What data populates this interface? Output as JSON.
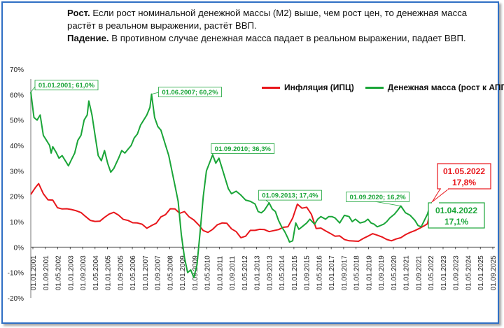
{
  "caption": {
    "rise_label": "Рост.",
    "rise_text": " Если рост номинальной денежной массы (М2) выше, чем рост цен,  то денежная масса растёт в реальном выражении, растёт ВВП.",
    "fall_label": "Падение.",
    "fall_text": " В противном случае денежная масса падает в реальном выражении, падает ВВП."
  },
  "colors": {
    "inflation": "#e8161b",
    "money": "#1aa538",
    "frame": "#2f6fc4"
  },
  "chart_data": {
    "type": "line",
    "title": "",
    "xlabel": "",
    "ylabel": "",
    "ylim": [
      -20,
      70
    ],
    "yticks": [
      -20,
      -10,
      0,
      10,
      20,
      30,
      40,
      50,
      60,
      70
    ],
    "ytick_labels": [
      "-20%",
      "-10%",
      "0%",
      "10%",
      "20%",
      "30%",
      "40%",
      "50%",
      "60%",
      "70%"
    ],
    "x_start": "2001-01",
    "x_end": "2025-09",
    "xtick_labels": [
      "01.01.2001",
      "01.09.2001",
      "01.05.2002",
      "01.01.2003",
      "01.09.2003",
      "01.05.2004",
      "01.01.2005",
      "01.09.2005",
      "01.05.2006",
      "01.01.2007",
      "01.09.2007",
      "01.05.2008",
      "01.01.2009",
      "01.09.2009",
      "01.05.2010",
      "01.01.2011",
      "01.09.2011",
      "01.05.2012",
      "01.01.2013",
      "01.09.2013",
      "01.05.2014",
      "01.01.2015",
      "01.09.2015",
      "01.05.2016",
      "01.01.2017",
      "01.09.2017",
      "01.05.2018",
      "01.01.2019",
      "01.09.2019",
      "01.05.2020",
      "01.01.2021",
      "01.09.2021",
      "01.05.2022",
      "01.01.2023",
      "01.09.2023",
      "01.05.2024",
      "01.01.2025",
      "01.09.2025"
    ],
    "legend": {
      "placement": "top-right"
    },
    "grid": false,
    "series": [
      {
        "name": "Инфляция (ИПЦ)",
        "points": [
          [
            "2001-01",
            20.7
          ],
          [
            "2001-04",
            23.5
          ],
          [
            "2001-06",
            25.0
          ],
          [
            "2001-09",
            21.0
          ],
          [
            "2001-12",
            18.6
          ],
          [
            "2002-03",
            18.5
          ],
          [
            "2002-06",
            15.5
          ],
          [
            "2002-09",
            15.0
          ],
          [
            "2002-12",
            15.1
          ],
          [
            "2003-03",
            14.8
          ],
          [
            "2003-06",
            14.3
          ],
          [
            "2003-09",
            13.6
          ],
          [
            "2003-12",
            12.0
          ],
          [
            "2004-03",
            10.5
          ],
          [
            "2004-06",
            10.1
          ],
          [
            "2004-09",
            10.2
          ],
          [
            "2004-12",
            11.7
          ],
          [
            "2005-03",
            13.0
          ],
          [
            "2005-06",
            13.7
          ],
          [
            "2005-09",
            12.6
          ],
          [
            "2005-12",
            10.9
          ],
          [
            "2006-03",
            10.5
          ],
          [
            "2006-06",
            9.6
          ],
          [
            "2006-09",
            9.5
          ],
          [
            "2006-12",
            9.0
          ],
          [
            "2007-03",
            7.4
          ],
          [
            "2007-06",
            8.5
          ],
          [
            "2007-09",
            9.4
          ],
          [
            "2007-12",
            11.9
          ],
          [
            "2008-03",
            12.8
          ],
          [
            "2008-06",
            15.1
          ],
          [
            "2008-09",
            15.0
          ],
          [
            "2008-12",
            13.3
          ],
          [
            "2009-03",
            14.0
          ],
          [
            "2009-06",
            11.9
          ],
          [
            "2009-09",
            10.7
          ],
          [
            "2009-12",
            8.8
          ],
          [
            "2010-03",
            6.5
          ],
          [
            "2010-06",
            5.8
          ],
          [
            "2010-09",
            7.0
          ],
          [
            "2010-12",
            8.8
          ],
          [
            "2011-03",
            9.5
          ],
          [
            "2011-06",
            9.4
          ],
          [
            "2011-09",
            7.2
          ],
          [
            "2011-12",
            6.1
          ],
          [
            "2012-03",
            3.7
          ],
          [
            "2012-06",
            4.3
          ],
          [
            "2012-09",
            6.6
          ],
          [
            "2012-12",
            6.6
          ],
          [
            "2013-03",
            7.0
          ],
          [
            "2013-06",
            6.9
          ],
          [
            "2013-09",
            6.1
          ],
          [
            "2013-12",
            6.5
          ],
          [
            "2014-03",
            6.9
          ],
          [
            "2014-06",
            7.8
          ],
          [
            "2014-09",
            8.0
          ],
          [
            "2014-12",
            11.4
          ],
          [
            "2015-03",
            16.9
          ],
          [
            "2015-06",
            15.3
          ],
          [
            "2015-09",
            15.7
          ],
          [
            "2015-12",
            12.9
          ],
          [
            "2016-03",
            7.3
          ],
          [
            "2016-06",
            7.5
          ],
          [
            "2016-09",
            6.4
          ],
          [
            "2016-12",
            5.4
          ],
          [
            "2017-03",
            4.3
          ],
          [
            "2017-06",
            4.4
          ],
          [
            "2017-09",
            3.0
          ],
          [
            "2017-12",
            2.5
          ],
          [
            "2018-03",
            2.4
          ],
          [
            "2018-06",
            2.3
          ],
          [
            "2018-09",
            3.4
          ],
          [
            "2018-12",
            4.3
          ],
          [
            "2019-03",
            5.3
          ],
          [
            "2019-06",
            4.7
          ],
          [
            "2019-09",
            4.0
          ],
          [
            "2019-12",
            3.0
          ],
          [
            "2020-03",
            2.5
          ],
          [
            "2020-06",
            3.2
          ],
          [
            "2020-09",
            3.7
          ],
          [
            "2020-12",
            4.9
          ],
          [
            "2021-03",
            5.8
          ],
          [
            "2021-06",
            6.5
          ],
          [
            "2021-09",
            7.4
          ],
          [
            "2021-12",
            8.4
          ],
          [
            "2022-02",
            9.2
          ],
          [
            "2022-05",
            17.8
          ]
        ]
      },
      {
        "name": "Денежная масса (рост к АППГ)",
        "points": [
          [
            "2001-01",
            61.0
          ],
          [
            "2001-03",
            51.0
          ],
          [
            "2001-05",
            50.0
          ],
          [
            "2001-07",
            52.0
          ],
          [
            "2001-09",
            44.0
          ],
          [
            "2001-11",
            42.0
          ],
          [
            "2002-01",
            40.0
          ],
          [
            "2002-02",
            37.0
          ],
          [
            "2002-03",
            39.5
          ],
          [
            "2002-05",
            37.5
          ],
          [
            "2002-07",
            35.0
          ],
          [
            "2002-09",
            36.0
          ],
          [
            "2002-11",
            34.0
          ],
          [
            "2003-01",
            32.0
          ],
          [
            "2003-03",
            34.5
          ],
          [
            "2003-05",
            37.0
          ],
          [
            "2003-07",
            42.0
          ],
          [
            "2003-09",
            44.0
          ],
          [
            "2003-11",
            50.0
          ],
          [
            "2004-01",
            52.0
          ],
          [
            "2004-02",
            57.5
          ],
          [
            "2004-04",
            52.0
          ],
          [
            "2004-06",
            44.0
          ],
          [
            "2004-08",
            36.0
          ],
          [
            "2004-10",
            34.0
          ],
          [
            "2004-12",
            38.0
          ],
          [
            "2005-02",
            33.0
          ],
          [
            "2005-04",
            29.5
          ],
          [
            "2005-06",
            31.0
          ],
          [
            "2005-09",
            35.0
          ],
          [
            "2005-11",
            38.0
          ],
          [
            "2006-01",
            37.0
          ],
          [
            "2006-03",
            38.5
          ],
          [
            "2006-05",
            40.0
          ],
          [
            "2006-07",
            43.0
          ],
          [
            "2006-09",
            44.5
          ],
          [
            "2006-11",
            48.0
          ],
          [
            "2007-01",
            50.0
          ],
          [
            "2007-03",
            52.0
          ],
          [
            "2007-05",
            55.0
          ],
          [
            "2007-06",
            60.2
          ],
          [
            "2007-08",
            51.0
          ],
          [
            "2007-10",
            47.5
          ],
          [
            "2007-12",
            46.0
          ],
          [
            "2008-03",
            40.0
          ],
          [
            "2008-05",
            36.0
          ],
          [
            "2008-07",
            30.0
          ],
          [
            "2008-09",
            24.0
          ],
          [
            "2008-11",
            18.0
          ],
          [
            "2009-01",
            5.0
          ],
          [
            "2009-03",
            -4.0
          ],
          [
            "2009-05",
            -10.0
          ],
          [
            "2009-07",
            -9.0
          ],
          [
            "2009-09",
            -12.0
          ],
          [
            "2009-11",
            -7.0
          ],
          [
            "2010-01",
            6.0
          ],
          [
            "2010-03",
            20.0
          ],
          [
            "2010-05",
            30.0
          ],
          [
            "2010-09",
            36.3
          ],
          [
            "2010-11",
            33.0
          ],
          [
            "2011-01",
            35.0
          ],
          [
            "2011-03",
            31.0
          ],
          [
            "2011-05",
            27.0
          ],
          [
            "2011-07",
            23.0
          ],
          [
            "2011-09",
            21.0
          ],
          [
            "2011-12",
            22.0
          ],
          [
            "2012-03",
            20.5
          ],
          [
            "2012-06",
            18.5
          ],
          [
            "2012-09",
            18.0
          ],
          [
            "2012-12",
            17.0
          ],
          [
            "2013-02",
            14.0
          ],
          [
            "2013-04",
            13.5
          ],
          [
            "2013-06",
            14.5
          ],
          [
            "2013-09",
            17.4
          ],
          [
            "2013-11",
            15.0
          ],
          [
            "2014-01",
            14.0
          ],
          [
            "2014-03",
            10.5
          ],
          [
            "2014-05",
            8.0
          ],
          [
            "2014-07",
            6.0
          ],
          [
            "2014-09",
            3.5
          ],
          [
            "2014-10",
            2.0
          ],
          [
            "2014-12",
            2.5
          ],
          [
            "2015-02",
            9.5
          ],
          [
            "2015-04",
            7.0
          ],
          [
            "2015-06",
            8.0
          ],
          [
            "2015-09",
            9.5
          ],
          [
            "2015-11",
            11.0
          ],
          [
            "2016-02",
            9.0
          ],
          [
            "2016-04",
            11.0
          ],
          [
            "2016-06",
            12.0
          ],
          [
            "2016-09",
            11.0
          ],
          [
            "2016-11",
            12.0
          ],
          [
            "2017-01",
            12.0
          ],
          [
            "2017-03",
            11.5
          ],
          [
            "2017-06",
            9.5
          ],
          [
            "2017-09",
            12.5
          ],
          [
            "2017-12",
            12.0
          ],
          [
            "2018-02",
            10.0
          ],
          [
            "2018-04",
            11.0
          ],
          [
            "2018-07",
            9.5
          ],
          [
            "2018-10",
            10.0
          ],
          [
            "2018-12",
            11.0
          ],
          [
            "2019-02",
            9.5
          ],
          [
            "2019-04",
            9.0
          ],
          [
            "2019-06",
            8.0
          ],
          [
            "2019-08",
            8.5
          ],
          [
            "2019-10",
            9.0
          ],
          [
            "2019-12",
            10.0
          ],
          [
            "2020-02",
            11.5
          ],
          [
            "2020-05",
            13.0
          ],
          [
            "2020-07",
            14.5
          ],
          [
            "2020-09",
            16.2
          ],
          [
            "2020-12",
            13.5
          ],
          [
            "2021-03",
            12.5
          ],
          [
            "2021-06",
            10.5
          ],
          [
            "2021-08",
            8.5
          ],
          [
            "2021-10",
            8.0
          ],
          [
            "2021-12",
            10.5
          ],
          [
            "2022-02",
            13.0
          ],
          [
            "2022-04",
            17.1
          ]
        ]
      }
    ],
    "annotations": [
      {
        "series": 1,
        "x": "2001-01",
        "y": 61.0,
        "text": "01.01.2001; 61,0%"
      },
      {
        "series": 1,
        "x": "2007-06",
        "y": 60.2,
        "text": "01.06.2007; 60,2%"
      },
      {
        "series": 1,
        "x": "2010-09",
        "y": 36.3,
        "text": "01.09.2010; 36,3%"
      },
      {
        "series": 1,
        "x": "2013-09",
        "y": 17.4,
        "text": "01.09.2013; 17,4%"
      },
      {
        "series": 1,
        "x": "2020-09",
        "y": 16.2,
        "text": "01.09.2020; 16,2%"
      }
    ],
    "callouts": [
      {
        "series": 0,
        "x": "2022-05",
        "y": 17.8,
        "date": "01.05.2022",
        "value": "17,8%"
      },
      {
        "series": 1,
        "x": "2022-04",
        "y": 17.1,
        "date": "01.04.2022",
        "value": "17,1%"
      }
    ]
  }
}
